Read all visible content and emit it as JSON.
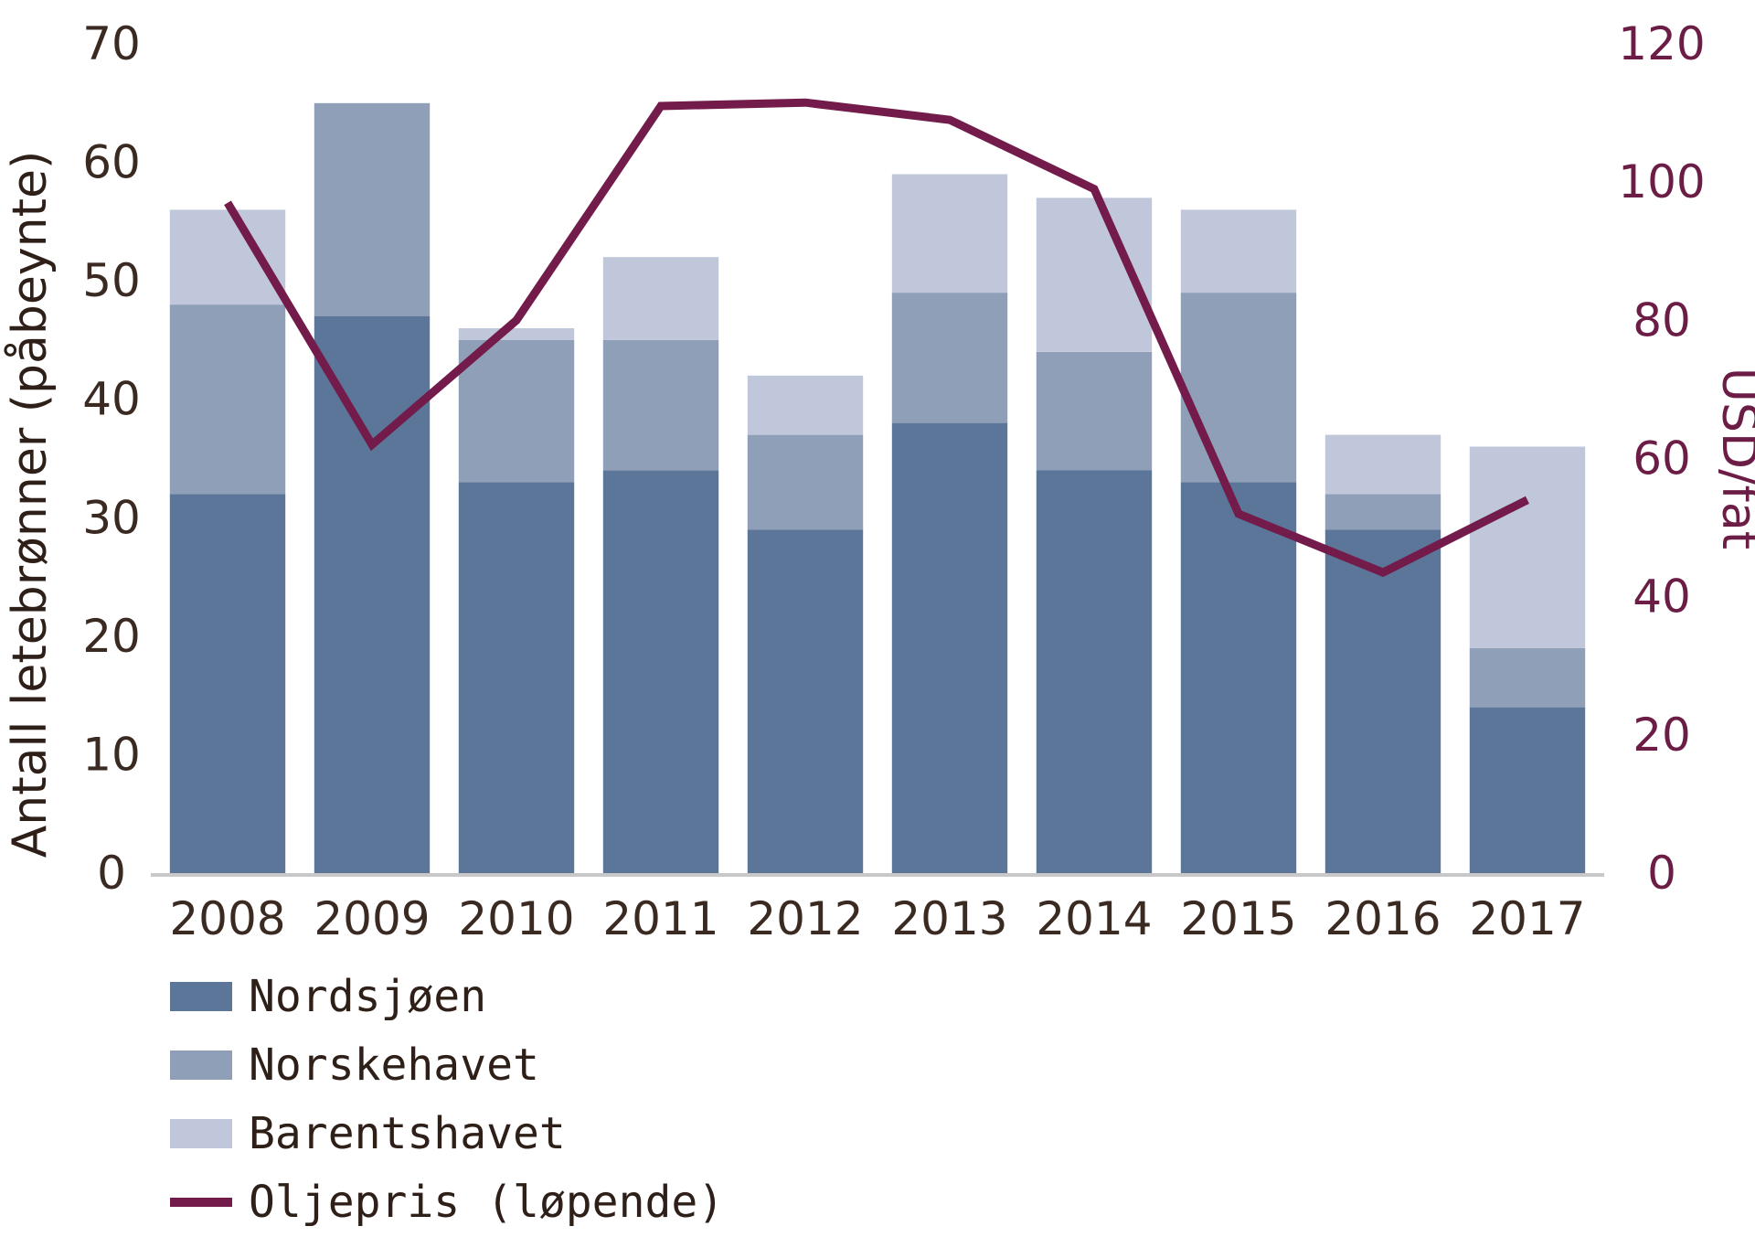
{
  "chart_data": {
    "type": "bar",
    "stacked": true,
    "categories": [
      "2008",
      "2009",
      "2010",
      "2011",
      "2012",
      "2013",
      "2014",
      "2015",
      "2016",
      "2017"
    ],
    "series": [
      {
        "name": "Nordsjøen",
        "color": "#5b7698",
        "values": [
          32,
          47,
          33,
          34,
          29,
          38,
          34,
          33,
          29,
          14
        ]
      },
      {
        "name": "Norskehavet",
        "color": "#8f9fb8",
        "values": [
          16,
          18,
          12,
          11,
          8,
          11,
          10,
          16,
          3,
          5
        ]
      },
      {
        "name": "Barentshavet",
        "color": "#c0c7da",
        "values": [
          8,
          0,
          1,
          7,
          5,
          10,
          13,
          7,
          5,
          17
        ]
      }
    ],
    "line_series": {
      "name": "Oljepris (løpende)",
      "color": "#731b4b",
      "axis": "right",
      "values": [
        97,
        62,
        80,
        111,
        111.5,
        109,
        99,
        52,
        43.5,
        54
      ]
    },
    "ylabel": "Antall letebrønner (påbeynte)",
    "ylabel_right": "USD/fat",
    "ylim": [
      0,
      70
    ],
    "ylim_right": [
      0,
      120
    ],
    "yticks": [
      0,
      10,
      20,
      30,
      40,
      50,
      60,
      70
    ],
    "yticks_right": [
      0,
      20,
      40,
      60,
      80,
      100,
      120
    ],
    "grid": false,
    "legend_position": "bottom-left"
  }
}
